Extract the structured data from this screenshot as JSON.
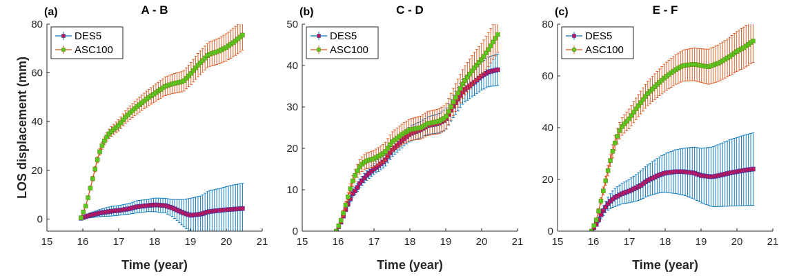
{
  "figure": {
    "ylabel": "LOS displacement (mm)"
  },
  "colors": {
    "des_line": "#0072BD",
    "des_marker": "#C0135A",
    "des_marker_edge": "#3B3BA0",
    "asc_line": "#D95319",
    "asc_marker": "#5AC81E",
    "asc_marker_edge": "#6E8A22"
  },
  "chart_data": [
    {
      "type": "line",
      "letter": "(a)",
      "title": "A - B",
      "xlabel": "Time (year)",
      "ylabel": "LOS displacement (mm)",
      "xlim": [
        15,
        21
      ],
      "ylim": [
        -5,
        80
      ],
      "xticks": [
        15,
        16,
        17,
        18,
        19,
        20,
        21
      ],
      "yticks": [
        0,
        20,
        40,
        60,
        80
      ],
      "legend": {
        "position": "top-left",
        "entries": [
          "DES5",
          "ASC100"
        ]
      },
      "series": [
        {
          "name": "DES5",
          "x": [
            15.95,
            16.2,
            16.5,
            16.8,
            17.0,
            17.3,
            17.5,
            17.8,
            18.0,
            18.3,
            18.5,
            18.8,
            19.0,
            19.3,
            19.5,
            19.8,
            20.0,
            20.2,
            20.45
          ],
          "y": [
            0.3,
            1.5,
            2.5,
            3.2,
            3.5,
            4.2,
            5.0,
            5.5,
            5.8,
            5.5,
            4.5,
            2.5,
            1.5,
            2.0,
            3.0,
            3.5,
            3.8,
            4.0,
            4.3
          ],
          "err": [
            0.2,
            1.0,
            1.5,
            2.0,
            2.0,
            2.2,
            2.5,
            2.5,
            2.8,
            3.0,
            3.5,
            5.5,
            7.0,
            7.5,
            8.5,
            9.0,
            9.5,
            10.0,
            10.3
          ]
        },
        {
          "name": "ASC100",
          "x": [
            15.95,
            16.1,
            16.2,
            16.3,
            16.4,
            16.5,
            16.6,
            16.7,
            16.8,
            17.0,
            17.2,
            17.5,
            17.8,
            18.0,
            18.3,
            18.5,
            18.8,
            19.0,
            19.2,
            19.5,
            19.8,
            20.0,
            20.2,
            20.45
          ],
          "y": [
            0.5,
            6,
            12,
            18,
            24,
            29,
            32,
            34.5,
            36,
            38.5,
            42,
            46,
            49.5,
            51.5,
            54.5,
            55.5,
            56.5,
            59.5,
            63,
            67.5,
            69,
            70.5,
            72.5,
            75.5
          ],
          "err": [
            0.3,
            0.6,
            0.8,
            1.0,
            1.2,
            1.4,
            1.6,
            1.8,
            2.0,
            2.3,
            2.6,
            3.0,
            3.3,
            3.5,
            3.8,
            4.0,
            4.2,
            4.5,
            4.8,
            5.0,
            5.3,
            5.6,
            5.9,
            6.2
          ]
        }
      ]
    },
    {
      "type": "line",
      "letter": "(b)",
      "title": "C - D",
      "xlabel": "Time (year)",
      "ylabel": "",
      "xlim": [
        15,
        21
      ],
      "ylim": [
        0,
        50
      ],
      "xticks": [
        15,
        16,
        17,
        18,
        19,
        20,
        21
      ],
      "yticks": [
        0,
        10,
        20,
        30,
        40,
        50
      ],
      "legend": {
        "position": "top-left",
        "entries": [
          "DES5",
          "ASC100"
        ]
      },
      "series": [
        {
          "name": "DES5",
          "x": [
            15.95,
            16.1,
            16.2,
            16.3,
            16.4,
            16.5,
            16.6,
            16.7,
            16.8,
            17.0,
            17.3,
            17.5,
            17.8,
            18.0,
            18.3,
            18.5,
            18.8,
            19.0,
            19.2,
            19.5,
            19.8,
            20.0,
            20.2,
            20.45
          ],
          "y": [
            0,
            2.5,
            5,
            7,
            9,
            10,
            11.5,
            12.5,
            13.5,
            15,
            17,
            19.5,
            22,
            23.5,
            24.5,
            25.5,
            26,
            27,
            30,
            34,
            36,
            37.5,
            38.5,
            39
          ],
          "err": [
            0.1,
            0.3,
            0.5,
            0.6,
            0.8,
            0.9,
            1.0,
            1.1,
            1.2,
            1.3,
            1.5,
            1.6,
            1.7,
            1.8,
            2.0,
            2.1,
            2.3,
            2.5,
            2.7,
            3.0,
            3.2,
            3.4,
            3.6,
            3.8
          ]
        },
        {
          "name": "ASC100",
          "x": [
            15.95,
            16.1,
            16.2,
            16.3,
            16.4,
            16.5,
            16.6,
            16.7,
            16.8,
            17.0,
            17.3,
            17.5,
            17.8,
            18.0,
            18.3,
            18.5,
            18.8,
            19.0,
            19.2,
            19.5,
            19.8,
            20.0,
            20.2,
            20.45
          ],
          "y": [
            0,
            3,
            6,
            9,
            12,
            14,
            15.5,
            16.5,
            17,
            17.5,
            19,
            21.5,
            23.5,
            24.5,
            25,
            26,
            26.5,
            27.5,
            31,
            36,
            39.5,
            41.5,
            44,
            47.5
          ],
          "err": [
            0.2,
            0.6,
            0.9,
            1.1,
            1.3,
            1.5,
            1.7,
            1.8,
            1.9,
            2.0,
            2.2,
            2.4,
            2.5,
            2.6,
            2.8,
            2.9,
            3.0,
            3.1,
            3.3,
            3.5,
            3.7,
            3.9,
            4.1,
            4.3
          ]
        }
      ]
    },
    {
      "type": "line",
      "letter": "(c)",
      "title": "E - F",
      "xlabel": "Time (year)",
      "ylabel": "",
      "xlim": [
        15,
        21
      ],
      "ylim": [
        0,
        80
      ],
      "xticks": [
        15,
        16,
        17,
        18,
        19,
        20,
        21
      ],
      "yticks": [
        0,
        20,
        40,
        60,
        80
      ],
      "legend": {
        "position": "top-left",
        "entries": [
          "DES5",
          "ASC100"
        ]
      },
      "series": [
        {
          "name": "DES5",
          "x": [
            15.95,
            16.1,
            16.2,
            16.3,
            16.4,
            16.5,
            16.6,
            16.8,
            17.0,
            17.3,
            17.5,
            17.8,
            18.0,
            18.3,
            18.5,
            18.8,
            19.0,
            19.3,
            19.5,
            19.8,
            20.0,
            20.2,
            20.45
          ],
          "y": [
            0,
            3,
            6,
            8.5,
            10.5,
            12,
            13,
            14.5,
            15.5,
            17.5,
            19.5,
            21.5,
            22.5,
            23,
            23,
            22.5,
            21.5,
            21,
            21.5,
            22.5,
            23,
            23.5,
            24
          ],
          "err": [
            0.2,
            0.8,
            1.5,
            2.0,
            2.5,
            3.0,
            3.5,
            4.0,
            4.5,
            5.5,
            6.0,
            6.8,
            7.5,
            8.5,
            9.0,
            10.0,
            10.5,
            11.5,
            12.0,
            12.8,
            13.2,
            13.6,
            14.0
          ]
        },
        {
          "name": "ASC100",
          "x": [
            15.95,
            16.1,
            16.2,
            16.3,
            16.4,
            16.5,
            16.6,
            16.7,
            16.8,
            17.0,
            17.2,
            17.5,
            17.8,
            18.0,
            18.3,
            18.5,
            18.8,
            19.0,
            19.2,
            19.5,
            19.8,
            20.0,
            20.2,
            20.45
          ],
          "y": [
            0,
            5,
            11,
            17,
            23,
            29,
            34,
            38,
            40.5,
            43.5,
            47.5,
            53,
            57,
            59.5,
            62.5,
            64,
            64.5,
            64,
            63.5,
            65,
            67.5,
            69.5,
            71,
            73.5
          ],
          "err": [
            0.3,
            0.8,
            1.2,
            1.6,
            2.0,
            2.4,
            2.8,
            3.1,
            3.4,
            3.8,
            4.2,
            4.7,
            5.1,
            5.4,
            5.7,
            6.0,
            6.3,
            6.5,
            6.8,
            7.1,
            7.4,
            7.7,
            8.0,
            8.3
          ]
        }
      ]
    }
  ]
}
